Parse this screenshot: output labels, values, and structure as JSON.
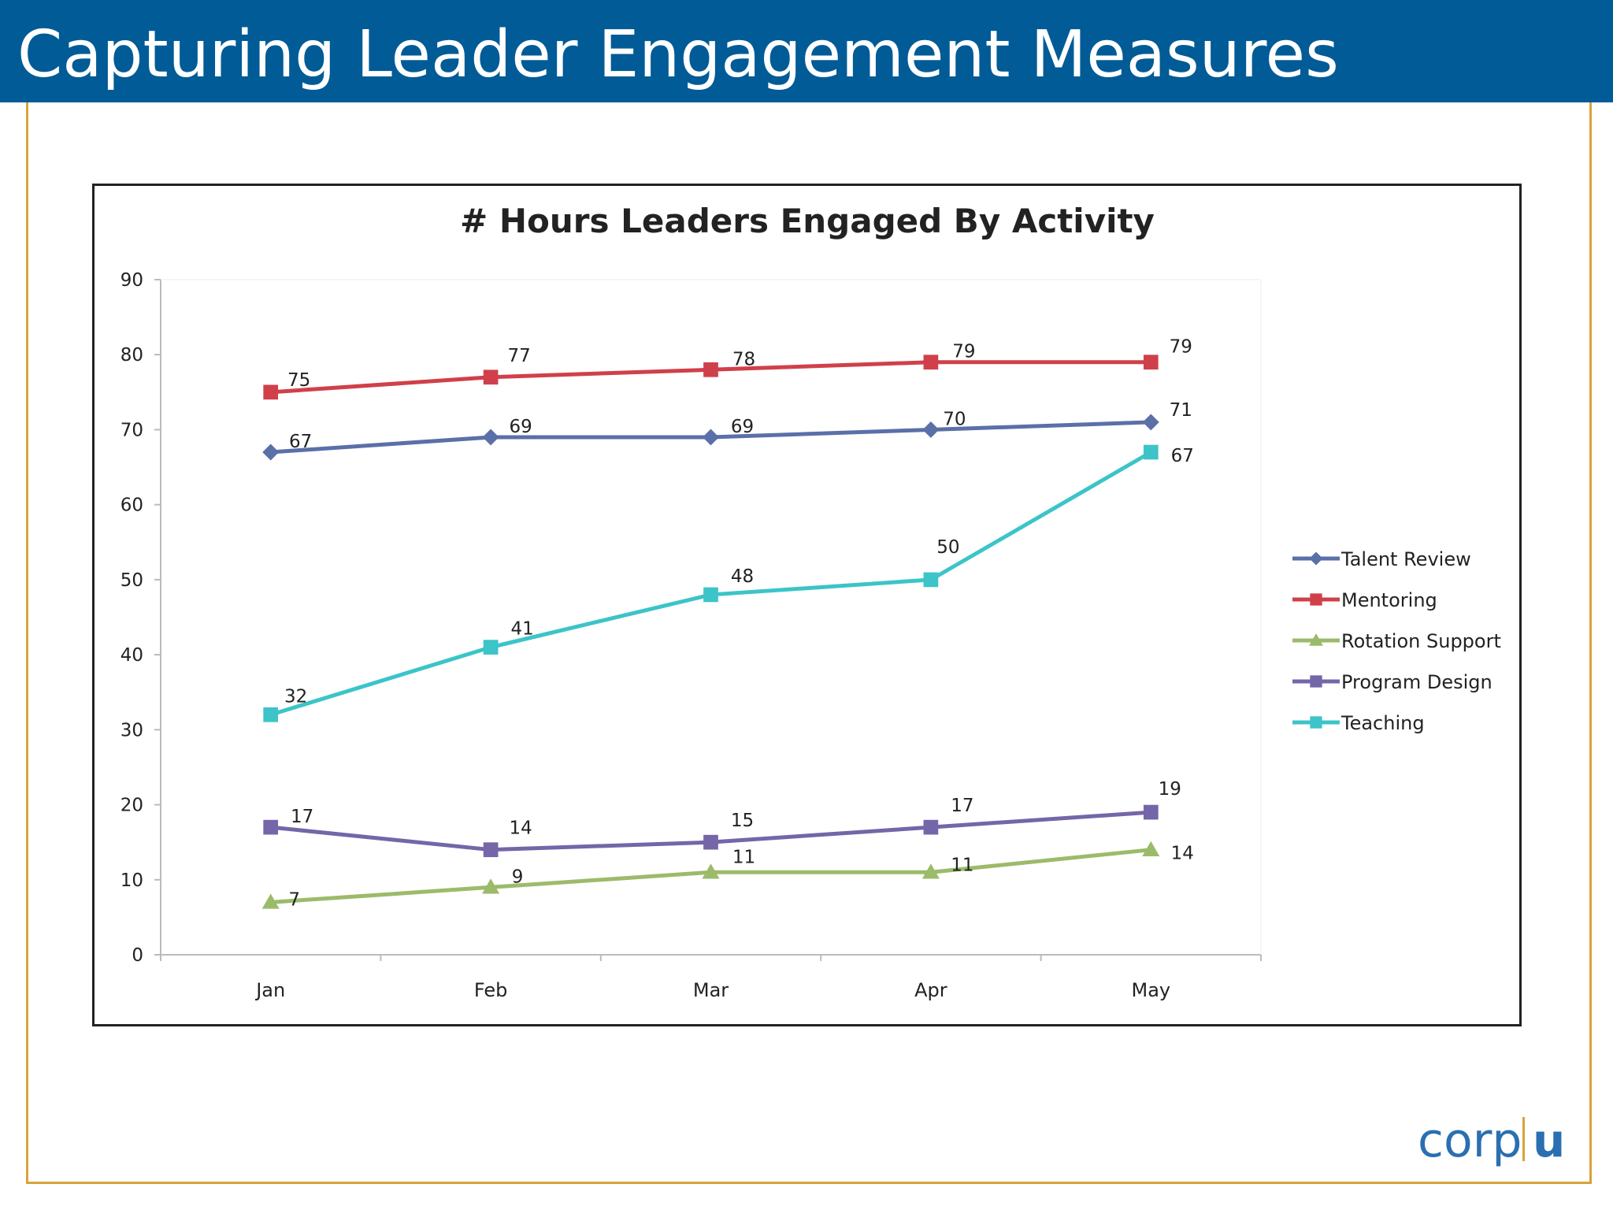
{
  "slide": {
    "title": "Capturing Leader Engagement Measures",
    "brand": {
      "name_part1": "corp",
      "name_part2": "u"
    },
    "colors": {
      "header_bg": "#005b96",
      "frame": "#d9a23a",
      "brand": "#2a6fb0"
    }
  },
  "chart_data": {
    "type": "line",
    "title": "# Hours Leaders Engaged By Activity",
    "xlabel": "",
    "ylabel": "",
    "categories": [
      "Jan",
      "Feb",
      "Mar",
      "Apr",
      "May"
    ],
    "ylim": [
      0,
      90
    ],
    "yticks": [
      0,
      10,
      20,
      30,
      40,
      50,
      60,
      70,
      80,
      90
    ],
    "grid": false,
    "legend_position": "right",
    "series": [
      {
        "name": "Talent Review",
        "values": [
          67,
          69,
          69,
          70,
          71
        ],
        "color": "#5b6fa8",
        "marker": "diamond"
      },
      {
        "name": "Mentoring",
        "values": [
          75,
          77,
          78,
          79,
          79
        ],
        "color": "#d0404a",
        "marker": "square"
      },
      {
        "name": "Rotation Support",
        "values": [
          7,
          9,
          11,
          11,
          14
        ],
        "color": "#9bbb6a",
        "marker": "triangle"
      },
      {
        "name": "Program Design",
        "values": [
          17,
          14,
          15,
          17,
          19
        ],
        "color": "#7466a8",
        "marker": "square"
      },
      {
        "name": "Teaching",
        "values": [
          32,
          41,
          48,
          50,
          67
        ],
        "color": "#3cc4c8",
        "marker": "square"
      }
    ]
  }
}
